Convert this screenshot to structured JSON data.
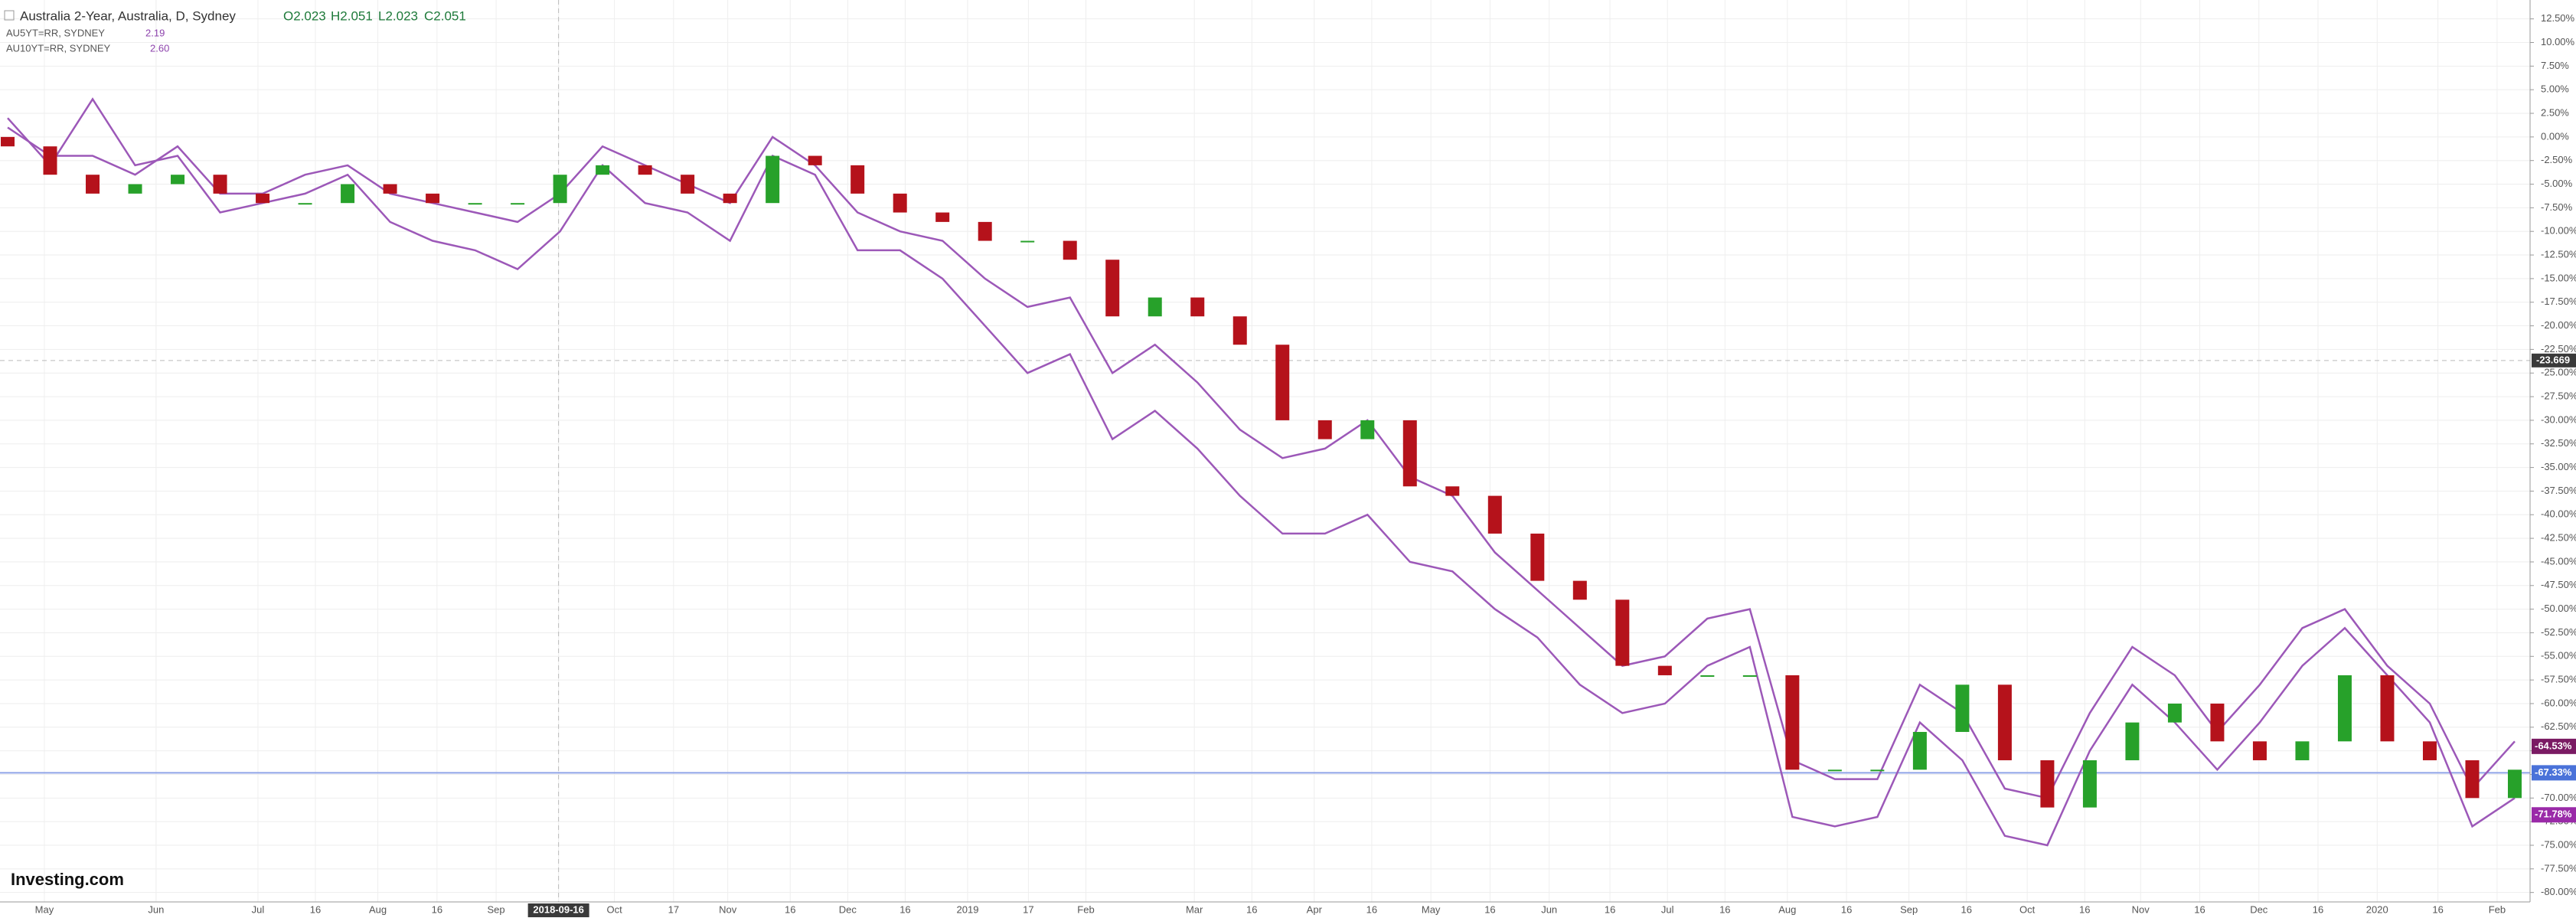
{
  "header": {
    "title": "Australia 2-Year, Australia, D, Sydney",
    "open": "O2.023",
    "high": "H2.051",
    "low": "L2.023",
    "close": "C2.051",
    "legend": [
      {
        "name": "AU5YT=RR, SYDNEY",
        "value": "2.19"
      },
      {
        "name": "AU10YT=RR, SYDNEY",
        "value": "2.60"
      }
    ]
  },
  "logo": "Investing.com",
  "chart_data": {
    "type": "candlestick",
    "ylim": [
      -81,
      14.5
    ],
    "yticks": [
      {
        "value": 12.5,
        "label": "12.50%"
      },
      {
        "value": 10,
        "label": "10.00%"
      },
      {
        "value": 7.5,
        "label": "7.50%"
      },
      {
        "value": 5,
        "label": "5.00%"
      },
      {
        "value": 2.5,
        "label": "2.50%"
      },
      {
        "value": 0,
        "label": "0.00%"
      },
      {
        "value": -2.5,
        "label": "-2.50%"
      },
      {
        "value": -5,
        "label": "-5.00%"
      },
      {
        "value": -7.5,
        "label": "-7.50%"
      },
      {
        "value": -10,
        "label": "-10.00%"
      },
      {
        "value": -12.5,
        "label": "-12.50%"
      },
      {
        "value": -15,
        "label": "-15.00%"
      },
      {
        "value": -17.5,
        "label": "-17.50%"
      },
      {
        "value": -20,
        "label": "-20.00%"
      },
      {
        "value": -22.5,
        "label": "-22.50%"
      },
      {
        "value": -25,
        "label": "-25.00%"
      },
      {
        "value": -27.5,
        "label": "-27.50%"
      },
      {
        "value": -30,
        "label": "-30.00%"
      },
      {
        "value": -32.5,
        "label": "-32.50%"
      },
      {
        "value": -35,
        "label": "-35.00%"
      },
      {
        "value": -37.5,
        "label": "-37.50%"
      },
      {
        "value": -40,
        "label": "-40.00%"
      },
      {
        "value": -42.5,
        "label": "-42.50%"
      },
      {
        "value": -45,
        "label": "-45.00%"
      },
      {
        "value": -47.5,
        "label": "-47.50%"
      },
      {
        "value": -50,
        "label": "-50.00%"
      },
      {
        "value": -52.5,
        "label": "-52.50%"
      },
      {
        "value": -55,
        "label": "-55.00%"
      },
      {
        "value": -57.5,
        "label": "-57.50%"
      },
      {
        "value": -60,
        "label": "-60.00%"
      },
      {
        "value": -62.5,
        "label": "-62.50%"
      },
      {
        "value": -65,
        "label": "-65.00%"
      },
      {
        "value": -67.5,
        "label": "-67.50%"
      },
      {
        "value": -70,
        "label": "-70.00%"
      },
      {
        "value": -72.5,
        "label": "-72.50%"
      },
      {
        "value": -75,
        "label": "-75.00%"
      },
      {
        "value": -77.5,
        "label": "-77.50%"
      },
      {
        "value": -80,
        "label": "-80.00%"
      }
    ],
    "xlabels": [
      "May",
      "Jun",
      "Jul",
      "16",
      "Aug",
      "16",
      "Sep",
      "2018-09-16",
      "Oct",
      "17",
      "Nov",
      "16",
      "Dec",
      "16",
      "2019",
      "17",
      "Feb",
      "Mar",
      "16",
      "Apr",
      "16",
      "May",
      "16",
      "Jun",
      "16",
      "Jul",
      "16",
      "Aug",
      "16",
      "Sep",
      "16",
      "Oct",
      "16",
      "Nov",
      "16",
      "Dec",
      "16",
      "2020",
      "16",
      "Feb"
    ],
    "grid": true,
    "candles": {
      "up_color": "#27a12a",
      "down_color": "#b5121b",
      "open": [
        0,
        -1,
        -4,
        -6,
        -5,
        -4,
        -6,
        -7,
        -7,
        -5,
        -6,
        -7,
        -7,
        -7,
        -4,
        -3,
        -4,
        -6,
        -7,
        -2,
        -3,
        -6,
        -8,
        -9,
        -11,
        -11,
        -13,
        -19,
        -17,
        -19,
        -22,
        -30,
        -32,
        -30,
        -37,
        -38,
        -42,
        -47,
        -49,
        -56,
        -57,
        -57,
        -57,
        -67,
        -67,
        -67,
        -63,
        -58,
        -66,
        -71,
        -66,
        -62,
        -60,
        -64,
        -66,
        -64,
        -57,
        -64,
        -66,
        -70
      ],
      "close": [
        -1,
        -4,
        -6,
        -5,
        -4,
        -6,
        -7,
        -7,
        -5,
        -6,
        -7,
        -7,
        -7,
        -4,
        -3,
        -4,
        -6,
        -7,
        -2,
        -3,
        -6,
        -8,
        -9,
        -11,
        -11,
        -13,
        -19,
        -17,
        -19,
        -22,
        -30,
        -32,
        -30,
        -37,
        -38,
        -42,
        -47,
        -49,
        -56,
        -57,
        -57,
        -57,
        -67,
        -67,
        -67,
        -63,
        -58,
        -66,
        -71,
        -66,
        -62,
        -60,
        -64,
        -66,
        -64,
        -57,
        -64,
        -66,
        -70,
        -67
      ]
    },
    "series": [
      {
        "name": "AU5YT=RR, SYDNEY",
        "color": "#9c58b8",
        "values": [
          1,
          -2,
          -2,
          -4,
          -1,
          -6,
          -6,
          -4,
          -3,
          -6,
          -7,
          -8,
          -9,
          -6,
          -1,
          -3,
          -5,
          -7,
          0,
          -3,
          -8,
          -10,
          -11,
          -15,
          -18,
          -17,
          -25,
          -22,
          -26,
          -31,
          -34,
          -33,
          -30,
          -36,
          -38,
          -44,
          -48,
          -52,
          -56,
          -55,
          -51,
          -50,
          -66,
          -68,
          -68,
          -58,
          -61,
          -69,
          -70,
          -61,
          -54,
          -57,
          -63,
          -58,
          -52,
          -50,
          -56,
          -60,
          -69,
          -64
        ]
      },
      {
        "name": "AU10YT=RR, SYDNEY",
        "color": "#9c58b8",
        "values": [
          2,
          -3,
          4,
          -3,
          -2,
          -8,
          -7,
          -6,
          -4,
          -9,
          -11,
          -12,
          -14,
          -10,
          -3,
          -7,
          -8,
          -11,
          -2,
          -4,
          -12,
          -12,
          -15,
          -20,
          -25,
          -23,
          -32,
          -29,
          -33,
          -38,
          -42,
          -42,
          -40,
          -45,
          -46,
          -50,
          -53,
          -58,
          -61,
          -60,
          -56,
          -54,
          -72,
          -73,
          -72,
          -62,
          -66,
          -74,
          -75,
          -65,
          -58,
          -62,
          -67,
          -62,
          -56,
          -52,
          -57,
          -62,
          -73,
          -70
        ]
      }
    ],
    "price_line": {
      "value": -67.33,
      "color": "#8fa3e8"
    },
    "crosshair": {
      "label": "-23.669",
      "value": -23.669
    },
    "badges": [
      {
        "value": -64.53,
        "label": "-64.53%",
        "color": "#7a1a63"
      },
      {
        "value": -67.33,
        "label": "-67.33%",
        "color": "#4a72d9"
      },
      {
        "value": -71.78,
        "label": "-71.78%",
        "color": "#9a2aa8"
      }
    ]
  }
}
